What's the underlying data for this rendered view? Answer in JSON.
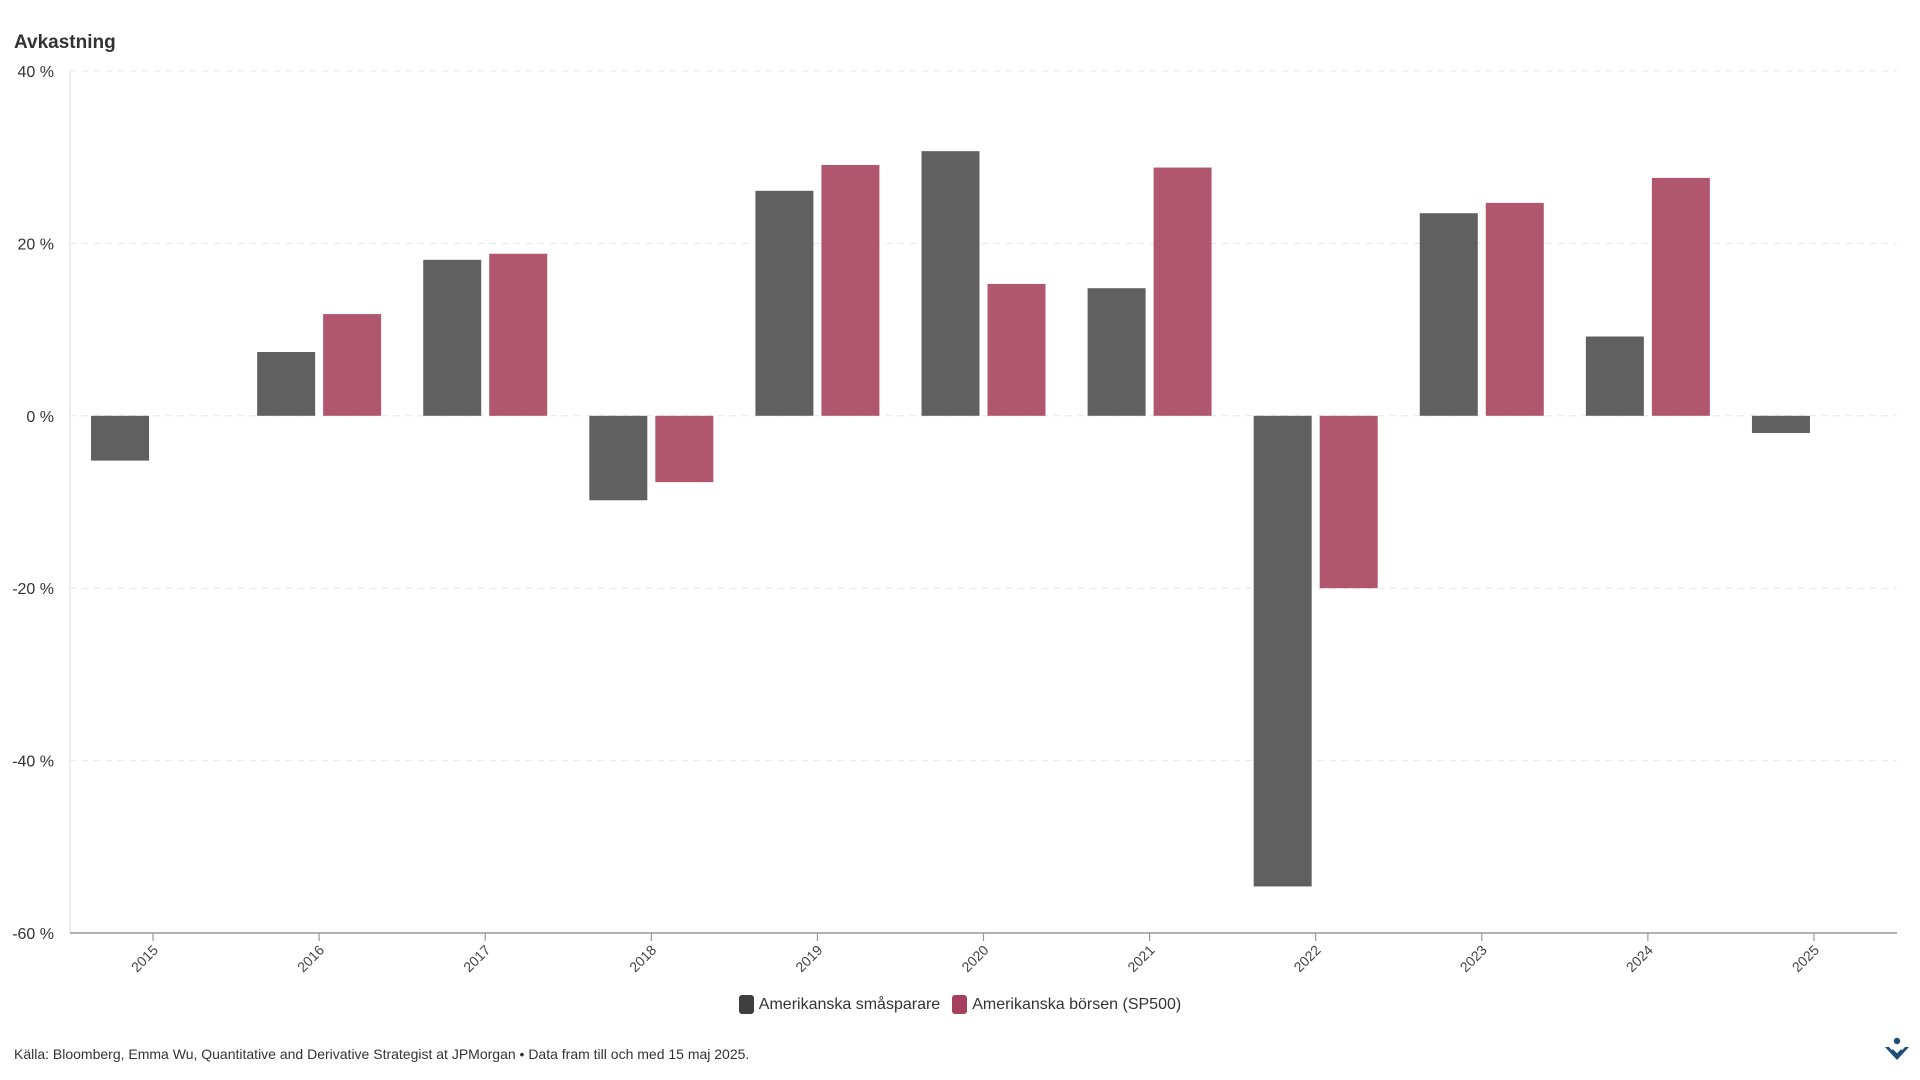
{
  "chart_data": {
    "type": "bar",
    "title": "",
    "ylabel": "Avkastning",
    "xlabel": "",
    "categories": [
      "2015",
      "2016",
      "2017",
      "2018",
      "2019",
      "2020",
      "2021",
      "2022",
      "2023",
      "2024",
      "2025"
    ],
    "series": [
      {
        "name": "Amerikanska småsparare",
        "color": "#606060",
        "values": [
          -5.2,
          7.4,
          18.1,
          -9.8,
          26.1,
          30.7,
          14.8,
          -54.6,
          23.5,
          9.2,
          -2.0
        ]
      },
      {
        "name": "Amerikanska börsen (SP500)",
        "color": "#b1566f",
        "values": [
          null,
          11.8,
          18.8,
          -7.7,
          29.1,
          15.3,
          28.8,
          -20.0,
          24.7,
          27.6,
          null
        ]
      }
    ],
    "ylim": [
      -60,
      40
    ],
    "yticks": [
      -60,
      -40,
      -20,
      0,
      20,
      40
    ],
    "ytick_labels": [
      "-60 %",
      "-40 %",
      "-20 %",
      "0 %",
      "20 %",
      "40 %"
    ],
    "grid": true,
    "legend_position": "bottom-center"
  },
  "legend": {
    "items": [
      {
        "label": "Amerikanska småsparare",
        "color": "#3f3f3f"
      },
      {
        "label": "Amerikanska börsen (SP500)",
        "color": "#a7405f"
      }
    ]
  },
  "footer": {
    "source": "Källa: Bloomberg, Emma Wu, Quantitative and Derivative Strategist at JPMorgan • Data fram till och med 15 maj 2025."
  },
  "logo": {
    "icon": "publisher-logo-icon",
    "color": "#1f4e79"
  }
}
